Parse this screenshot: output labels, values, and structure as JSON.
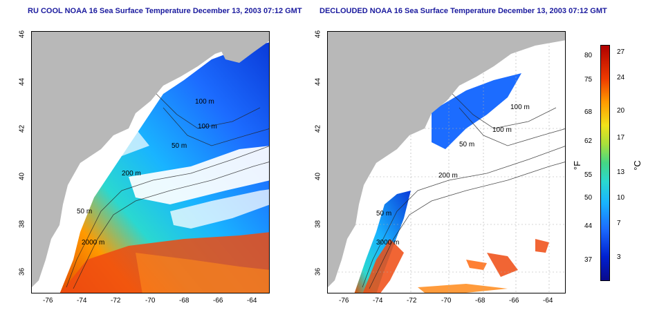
{
  "titles": {
    "left": "RU COOL NOAA 16 Sea Surface Temperature December 13, 2003 07:12 GMT",
    "right": "DECLOUDED NOAA 16 Sea Surface Temperature December 13, 2003 07:12 GMT"
  },
  "axes": {
    "lon_ticks": [
      "-76",
      "-74",
      "-72",
      "-70",
      "-68",
      "-66",
      "-64"
    ],
    "lat_ticks": [
      "46",
      "44",
      "42",
      "40",
      "38",
      "36"
    ],
    "lon_range": [
      -77,
      -63
    ],
    "lat_range": [
      35,
      46
    ]
  },
  "contours": {
    "left": [
      "100 m",
      "100 m",
      "50 m",
      "200 m",
      "50 m",
      "2000 m"
    ],
    "right": [
      "100 m",
      "100 m",
      "50 m",
      "200 m",
      "50 m",
      "3000 m"
    ]
  },
  "colorbar": {
    "fahrenheit_ticks": [
      "80",
      "75",
      "68",
      "62",
      "55",
      "50",
      "44",
      "37"
    ],
    "celsius_ticks": [
      "27",
      "24",
      "20",
      "17",
      "13",
      "10",
      "7",
      "3"
    ],
    "fahrenheit_unit": "°F",
    "celsius_unit": "°C",
    "range_c": [
      0,
      28
    ]
  },
  "colors": {
    "title": "#1a1a9e",
    "land": "#b8b8b8",
    "gridline": "#aaaaaa"
  }
}
